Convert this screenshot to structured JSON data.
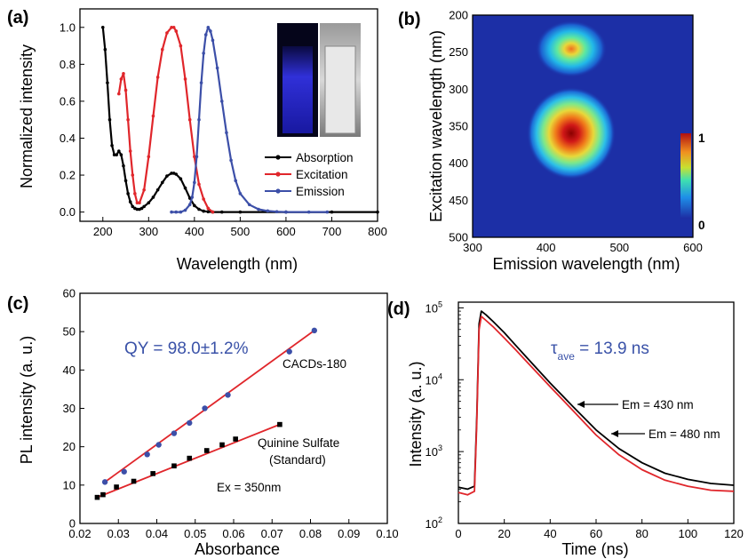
{
  "panel_labels": [
    "(a)",
    "(b)",
    "(c)",
    "(d)"
  ],
  "colors": {
    "absorption": "#000000",
    "excitation": "#e0262b",
    "emission": "#3c4fa8",
    "fit": "#e0262b",
    "annotation": "#3a52a8"
  },
  "chart_data": [
    {
      "panel": "(a)",
      "type": "line",
      "xlabel": "Wavelength (nm)",
      "ylabel": "Normalized intensity",
      "xlim": [
        150,
        800
      ],
      "ylim": [
        -0.05,
        1.1
      ],
      "xticks": [
        200,
        300,
        400,
        500,
        600,
        700,
        800
      ],
      "yticks": [
        0.0,
        0.2,
        0.4,
        0.6,
        0.8,
        1.0
      ],
      "legend_position": "bottom-right",
      "inset": "photos of sample cuvettes",
      "series": [
        {
          "name": "Absorption",
          "color": "#000000",
          "x": [
            200,
            205,
            210,
            215,
            220,
            225,
            230,
            235,
            240,
            245,
            250,
            255,
            260,
            265,
            270,
            275,
            280,
            285,
            290,
            300,
            310,
            320,
            330,
            340,
            350,
            355,
            360,
            370,
            380,
            390,
            400,
            410,
            420,
            430,
            440,
            460,
            500,
            600,
            700,
            800
          ],
          "y": [
            1.0,
            0.88,
            0.7,
            0.5,
            0.36,
            0.31,
            0.31,
            0.33,
            0.31,
            0.25,
            0.17,
            0.1,
            0.055,
            0.03,
            0.02,
            0.015,
            0.015,
            0.02,
            0.03,
            0.05,
            0.08,
            0.12,
            0.16,
            0.195,
            0.21,
            0.21,
            0.205,
            0.18,
            0.13,
            0.075,
            0.035,
            0.015,
            0.005,
            0.002,
            0.0,
            0.0,
            0.0,
            0.0,
            0.0,
            0.0
          ]
        },
        {
          "name": "Excitation",
          "color": "#e0262b",
          "x": [
            235,
            240,
            245,
            250,
            255,
            260,
            265,
            270,
            275,
            280,
            290,
            300,
            310,
            320,
            330,
            340,
            350,
            355,
            360,
            370,
            380,
            390,
            400,
            410,
            420,
            430,
            440
          ],
          "y": [
            0.64,
            0.72,
            0.75,
            0.66,
            0.5,
            0.33,
            0.2,
            0.1,
            0.05,
            0.05,
            0.12,
            0.3,
            0.52,
            0.73,
            0.88,
            0.97,
            1.0,
            1.0,
            0.98,
            0.9,
            0.72,
            0.5,
            0.3,
            0.15,
            0.07,
            0.02,
            0.0
          ]
        },
        {
          "name": "Emission",
          "color": "#3c4fa8",
          "x": [
            350,
            360,
            370,
            380,
            390,
            395,
            400,
            405,
            410,
            415,
            420,
            425,
            430,
            435,
            440,
            450,
            460,
            470,
            480,
            490,
            500,
            520,
            540,
            560,
            580,
            600,
            650,
            690
          ],
          "y": [
            0.0,
            0.0,
            0.0,
            0.01,
            0.04,
            0.08,
            0.16,
            0.3,
            0.5,
            0.7,
            0.86,
            0.96,
            1.0,
            0.98,
            0.93,
            0.78,
            0.6,
            0.43,
            0.28,
            0.17,
            0.1,
            0.04,
            0.015,
            0.006,
            0.002,
            0.0,
            0.0,
            0.0
          ]
        }
      ]
    },
    {
      "panel": "(b)",
      "type": "heatmap",
      "xlabel": "Emission wavelength (nm)",
      "ylabel": "Excitation wavelength (nm)",
      "xlim": [
        300,
        600
      ],
      "ylim": [
        200,
        500
      ],
      "xticks": [
        300,
        400,
        500,
        600
      ],
      "yticks": [
        200,
        250,
        300,
        350,
        400,
        450,
        500
      ],
      "colorbar_ticks": [
        "1",
        "0"
      ],
      "peaks": [
        {
          "emission_nm": 435,
          "excitation_nm": 365,
          "intensity": 1.0
        },
        {
          "emission_nm": 435,
          "excitation_nm": 248,
          "intensity": 0.72
        }
      ]
    },
    {
      "panel": "(c)",
      "type": "scatter",
      "xlabel": "Absorbance",
      "ylabel": "PL intensity (a. u.)",
      "xlim": [
        0.02,
        0.1
      ],
      "ylim": [
        0,
        60
      ],
      "xticks": [
        "0.02",
        "0.03",
        "0.04",
        "0.05",
        "0.06",
        "0.07",
        "0.08",
        "0.09",
        "0.10"
      ],
      "yticks": [
        0,
        10,
        20,
        30,
        40,
        50,
        60
      ],
      "annotations": [
        "QY = 98.0±1.2%",
        "CACDs-180",
        "Quinine Sulfate",
        "(Standard)",
        "Ex = 350nm"
      ],
      "series": [
        {
          "name": "CACDs-180",
          "color": "#3c4fa8",
          "x": [
            0.0265,
            0.0315,
            0.0375,
            0.0405,
            0.0445,
            0.0485,
            0.0525,
            0.0585,
            0.0745,
            0.081
          ],
          "y": [
            10.8,
            13.5,
            18.0,
            20.5,
            23.5,
            26.2,
            30.0,
            33.5,
            44.8,
            50.3
          ]
        },
        {
          "name": "Quinine Sulfate (Standard)",
          "color": "#000000",
          "x": [
            0.0245,
            0.026,
            0.0295,
            0.034,
            0.039,
            0.0445,
            0.0485,
            0.053,
            0.057,
            0.0605,
            0.072
          ],
          "y": [
            6.8,
            7.5,
            9.5,
            11.0,
            13.0,
            15.0,
            17.0,
            19.0,
            20.5,
            22.0,
            25.8
          ]
        }
      ],
      "fit_lines": [
        {
          "x": [
            0.0265,
            0.081
          ],
          "y": [
            10.8,
            50.3
          ]
        },
        {
          "x": [
            0.0245,
            0.072
          ],
          "y": [
            6.8,
            25.8
          ]
        }
      ]
    },
    {
      "panel": "(d)",
      "type": "line",
      "xlabel": "Time (ns)",
      "ylabel": "Intensity (a. u.)",
      "xlim": [
        0,
        120
      ],
      "ylim": [
        100,
        120000
      ],
      "yscale": "log",
      "xticks": [
        0,
        20,
        40,
        60,
        80,
        100,
        120
      ],
      "yticks": [
        {
          "base": "10",
          "exp": "2",
          "value": 100
        },
        {
          "base": "10",
          "exp": "3",
          "value": 1000
        },
        {
          "base": "10",
          "exp": "4",
          "value": 10000
        },
        {
          "base": "10",
          "exp": "5",
          "value": 100000
        }
      ],
      "annotation": {
        "tau": "τ",
        "sub": "ave",
        "value": " = 13.9 ns"
      },
      "series": [
        {
          "name": "Em = 430 nm",
          "color": "#000000",
          "x": [
            0,
            4,
            7,
            8,
            9,
            10,
            12,
            15,
            20,
            25,
            30,
            40,
            50,
            60,
            70,
            80,
            90,
            100,
            110,
            120
          ],
          "y": [
            320,
            300,
            330,
            3000,
            60000,
            90000,
            80000,
            65000,
            45000,
            30000,
            20000,
            9000,
            4200,
            2000,
            1100,
            700,
            500,
            410,
            360,
            340
          ]
        },
        {
          "name": "Em = 480 nm",
          "color": "#e0262b",
          "x": [
            0,
            4,
            7,
            8,
            9,
            10,
            12,
            15,
            20,
            25,
            30,
            40,
            50,
            60,
            70,
            80,
            90,
            100,
            110,
            120
          ],
          "y": [
            270,
            250,
            280,
            2500,
            50000,
            76000,
            67000,
            55000,
            38000,
            26000,
            17500,
            8000,
            3700,
            1700,
            900,
            560,
            400,
            330,
            290,
            280
          ]
        }
      ]
    }
  ]
}
